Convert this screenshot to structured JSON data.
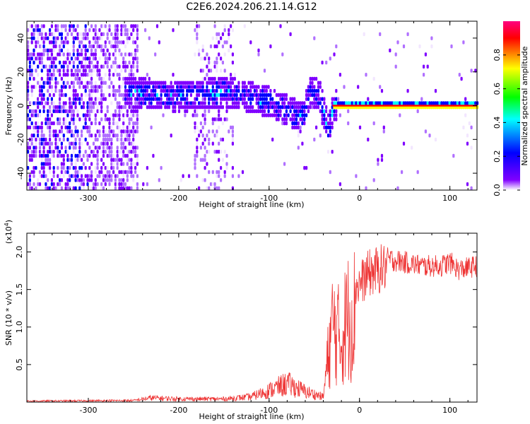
{
  "title": "C2E6.2024.206.21.14.G12",
  "chart_data": [
    {
      "type": "heatmap",
      "xlabel": "Height of straight line (km)",
      "ylabel": "Frequency (Hz)",
      "xlim": [
        -368,
        130
      ],
      "ylim": [
        -50,
        50
      ],
      "xticks": [
        -300,
        -200,
        -100,
        0,
        100
      ],
      "yticks": [
        -40,
        -20,
        0,
        20,
        40
      ],
      "colorbar": {
        "label": "Normalized spectral amplitude",
        "range": [
          0.0,
          1.0
        ],
        "ticks": [
          0.0,
          0.2,
          0.4,
          0.6,
          0.8
        ],
        "colors": [
          "#ffffff",
          "#7b00ff",
          "#0000ff",
          "#00ffff",
          "#00ff00",
          "#ffff00",
          "#ff0000",
          "#ff0080"
        ]
      },
      "ridge": {
        "description_points_x": [
          -255,
          -200,
          -150,
          -130,
          -100,
          -80,
          -65,
          -55,
          -45,
          -40,
          -35,
          -30,
          0,
          130
        ],
        "description_points_y": [
          8,
          5,
          8,
          6,
          2,
          -3,
          -7,
          8,
          6,
          -5,
          -15,
          0,
          1,
          0
        ]
      },
      "flat_line_x": [
        -30,
        130
      ],
      "flat_line_y": 0
    },
    {
      "type": "line",
      "xlabel": "Height of straight line (km)",
      "ylabel": "SNR (10 * v/v)",
      "scale_label": "(x10",
      "scale_exponent": "4",
      "scale_close": ")",
      "xlim": [
        -368,
        130
      ],
      "ylim": [
        0,
        2.25
      ],
      "xticks": [
        -300,
        -200,
        -100,
        0,
        100
      ],
      "yticks": [
        0.5,
        1.0,
        1.5,
        2.0
      ],
      "color": "#ee3333",
      "envelope_x": [
        -368,
        -250,
        -230,
        -200,
        -150,
        -120,
        -100,
        -80,
        -60,
        -40,
        -35,
        -30,
        -25,
        -20,
        -15,
        -10,
        0,
        10,
        30,
        50,
        70,
        90,
        100,
        110,
        130
      ],
      "envelope_y": [
        0.02,
        0.03,
        0.08,
        0.06,
        0.06,
        0.1,
        0.22,
        0.35,
        0.2,
        0.1,
        0.8,
        1.4,
        1.3,
        1.1,
        1.5,
        1.6,
        1.7,
        1.85,
        1.95,
        1.9,
        1.85,
        1.85,
        1.9,
        1.8,
        1.85
      ]
    }
  ]
}
